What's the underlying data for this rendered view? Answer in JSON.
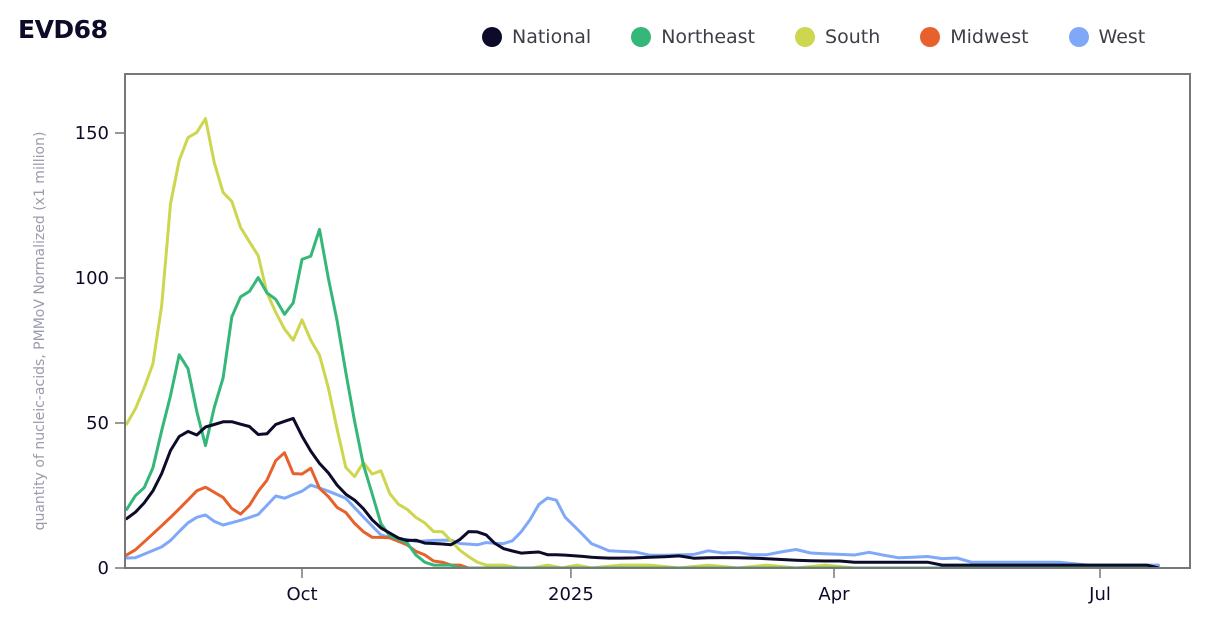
{
  "chart_data": {
    "type": "line",
    "title": "EVD68",
    "xlabel": "",
    "ylabel": "quantity of nucleic-acids, PMMoV Normalized (x1 million)",
    "x_unit": "days since 2024-08-01",
    "xlim": [
      1,
      354
    ],
    "ylim": [
      0,
      170
    ],
    "yticks": [
      0,
      50,
      100,
      150
    ],
    "xticks": [
      {
        "label": "Oct",
        "x": 61
      },
      {
        "label": "2025",
        "x": 153
      },
      {
        "label": "Apr",
        "x": 243
      },
      {
        "label": "Jul",
        "x": 334
      }
    ],
    "grid": false,
    "legend_position": "top-right",
    "series": [
      {
        "name": "National",
        "color": "#0d0b2a",
        "x": [
          1,
          4,
          7,
          10,
          13,
          16,
          19,
          22,
          25,
          28,
          31,
          34,
          37,
          40,
          43,
          46,
          49,
          52,
          55,
          58,
          61,
          64,
          67,
          70,
          73,
          76,
          79,
          82,
          85,
          88,
          91,
          94,
          97,
          100,
          103,
          106,
          109,
          112,
          115,
          118,
          121,
          124,
          127,
          130,
          133,
          136,
          139,
          142,
          145,
          148,
          151,
          154,
          157,
          160,
          163,
          166,
          170,
          175,
          180,
          185,
          190,
          195,
          200,
          205,
          210,
          215,
          220,
          225,
          230,
          235,
          240,
          245,
          250,
          255,
          260,
          265,
          270,
          275,
          280,
          285,
          290,
          295,
          300,
          305,
          310,
          320,
          330,
          340,
          350,
          354
        ],
        "y": [
          17,
          19,
          22,
          26,
          32,
          40,
          45,
          47,
          46,
          49,
          50,
          51,
          51,
          50,
          49,
          46,
          46,
          49,
          50,
          51,
          45,
          40,
          36,
          33,
          29,
          26,
          24,
          21,
          17,
          14,
          12,
          10,
          9,
          9,
          8,
          8,
          8,
          8,
          10,
          13,
          13,
          12,
          9,
          7,
          6,
          5,
          5,
          5,
          4,
          4,
          4,
          4,
          4,
          4,
          4,
          4,
          4,
          4,
          4,
          4,
          4,
          3,
          3,
          3,
          3,
          3,
          3,
          3,
          3,
          3,
          3,
          3,
          2,
          2,
          2,
          2,
          2,
          2,
          1,
          1,
          1,
          1,
          1,
          1,
          1,
          1,
          1,
          1,
          1,
          0
        ]
      },
      {
        "name": "Northeast",
        "color": "#35b779",
        "x": [
          1,
          4,
          7,
          10,
          13,
          16,
          19,
          22,
          25,
          28,
          31,
          34,
          37,
          40,
          43,
          46,
          49,
          52,
          55,
          58,
          61,
          64,
          67,
          70,
          73,
          76,
          79,
          82,
          85,
          88,
          91,
          94,
          97,
          100,
          103,
          106,
          109,
          112,
          115,
          118,
          121,
          124,
          127,
          130,
          140,
          150,
          160,
          170,
          200,
          250,
          300,
          354
        ],
        "y": [
          20,
          25,
          28,
          35,
          48,
          60,
          74,
          69,
          54,
          42,
          55,
          65,
          86,
          93,
          95,
          100,
          95,
          93,
          88,
          92,
          107,
          108,
          117,
          100,
          85,
          67,
          50,
          35,
          25,
          15,
          11,
          10,
          9,
          5,
          2,
          1,
          1,
          1,
          0,
          0,
          0,
          0,
          0,
          0,
          0,
          0,
          0,
          0,
          0,
          0,
          0,
          0
        ]
      },
      {
        "name": "South",
        "color": "#cdd64f",
        "x": [
          1,
          4,
          7,
          10,
          13,
          16,
          19,
          22,
          25,
          28,
          31,
          34,
          37,
          40,
          43,
          46,
          49,
          52,
          55,
          58,
          61,
          64,
          67,
          70,
          73,
          76,
          79,
          82,
          85,
          88,
          91,
          94,
          97,
          100,
          103,
          106,
          109,
          112,
          115,
          118,
          121,
          124,
          127,
          130,
          135,
          140,
          145,
          150,
          155,
          160,
          170,
          180,
          190,
          200,
          210,
          220,
          230,
          240,
          250,
          270,
          300,
          330,
          354
        ],
        "y": [
          50,
          55,
          62,
          70,
          90,
          125,
          140,
          148,
          150,
          155,
          140,
          130,
          127,
          118,
          113,
          108,
          95,
          88,
          82,
          78,
          85,
          78,
          73,
          62,
          48,
          35,
          32,
          37,
          33,
          34,
          26,
          22,
          20,
          17,
          15,
          12,
          12,
          9,
          6,
          4,
          2,
          1,
          1,
          1,
          0,
          0,
          1,
          0,
          1,
          0,
          1,
          1,
          0,
          1,
          0,
          1,
          0,
          1,
          0,
          0,
          0,
          0,
          0
        ]
      },
      {
        "name": "Midwest",
        "color": "#e8602c",
        "x": [
          1,
          4,
          7,
          10,
          13,
          16,
          19,
          22,
          25,
          28,
          31,
          34,
          37,
          40,
          43,
          46,
          49,
          52,
          55,
          58,
          61,
          64,
          67,
          70,
          73,
          76,
          79,
          82,
          85,
          88,
          91,
          94,
          97,
          100,
          103,
          106,
          109,
          112,
          115,
          118,
          121,
          124,
          127,
          130,
          140,
          150,
          200,
          300,
          354
        ],
        "y": [
          4,
          6,
          9,
          12,
          15,
          18,
          21,
          24,
          27,
          28,
          26,
          24,
          20,
          18,
          21,
          26,
          30,
          37,
          40,
          33,
          33,
          35,
          28,
          25,
          21,
          19,
          15,
          12,
          10,
          10,
          10,
          9,
          8,
          6,
          5,
          3,
          2,
          1,
          1,
          0,
          0,
          0,
          0,
          0,
          0,
          0,
          0,
          0,
          0
        ]
      },
      {
        "name": "West",
        "color": "#7fa9f8",
        "x": [
          1,
          4,
          7,
          10,
          13,
          16,
          19,
          22,
          25,
          28,
          31,
          34,
          37,
          40,
          43,
          46,
          49,
          52,
          55,
          58,
          61,
          64,
          67,
          70,
          73,
          76,
          79,
          82,
          85,
          88,
          91,
          94,
          97,
          100,
          103,
          106,
          109,
          112,
          115,
          118,
          121,
          124,
          127,
          130,
          133,
          136,
          139,
          142,
          145,
          148,
          151,
          154,
          157,
          160,
          163,
          166,
          170,
          175,
          180,
          185,
          190,
          195,
          200,
          205,
          210,
          215,
          220,
          225,
          230,
          235,
          240,
          245,
          250,
          255,
          260,
          265,
          270,
          275,
          280,
          285,
          290,
          300,
          310,
          320,
          330,
          340,
          350,
          354
        ],
        "y": [
          4,
          4,
          5,
          6,
          7,
          9,
          12,
          15,
          17,
          18,
          16,
          15,
          16,
          17,
          18,
          19,
          22,
          25,
          24,
          25,
          26,
          28,
          27,
          26,
          25,
          24,
          21,
          18,
          15,
          12,
          11,
          10,
          10,
          9,
          9,
          9,
          9,
          9,
          8,
          8,
          8,
          9,
          9,
          9,
          10,
          13,
          17,
          22,
          24,
          23,
          17,
          14,
          11,
          8,
          7,
          6,
          6,
          6,
          5,
          5,
          5,
          5,
          6,
          5,
          5,
          4,
          4,
          5,
          6,
          5,
          5,
          5,
          5,
          6,
          5,
          4,
          4,
          4,
          3,
          3,
          2,
          2,
          2,
          2,
          1,
          1,
          1,
          1
        ]
      }
    ]
  }
}
